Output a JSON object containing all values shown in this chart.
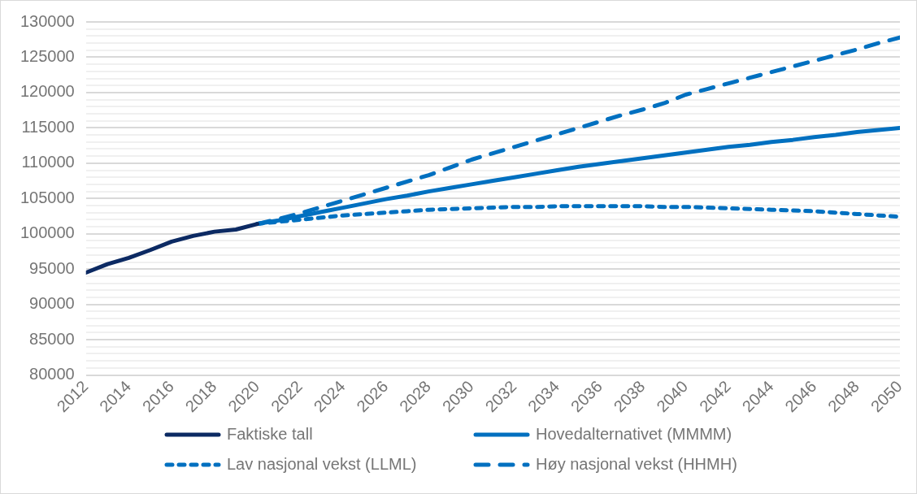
{
  "chart_data": {
    "type": "line",
    "x": [
      2012,
      2013,
      2014,
      2015,
      2016,
      2017,
      2018,
      2019,
      2020,
      2021,
      2022,
      2023,
      2024,
      2025,
      2026,
      2027,
      2028,
      2029,
      2030,
      2031,
      2032,
      2033,
      2034,
      2035,
      2036,
      2037,
      2038,
      2039,
      2040,
      2041,
      2042,
      2043,
      2044,
      2045,
      2046,
      2047,
      2048,
      2049,
      2050
    ],
    "series": [
      {
        "name": "Faktiske tall",
        "color": "#0c2a63",
        "line_style": "solid",
        "values": [
          94500,
          95700,
          96600,
          97700,
          98900,
          99700,
          100300,
          100600,
          101400,
          null,
          null,
          null,
          null,
          null,
          null,
          null,
          null,
          null,
          null,
          null,
          null,
          null,
          null,
          null,
          null,
          null,
          null,
          null,
          null,
          null,
          null,
          null,
          null,
          null,
          null,
          null,
          null,
          null,
          null
        ]
      },
      {
        "name": "Hovedalternativet (MMMM)",
        "color": "#0070c0",
        "line_style": "solid",
        "values": [
          null,
          null,
          null,
          null,
          null,
          null,
          null,
          null,
          101400,
          101900,
          102500,
          103100,
          103700,
          104300,
          104900,
          105400,
          106000,
          106500,
          107000,
          107500,
          108000,
          108500,
          109000,
          109500,
          109900,
          110300,
          110700,
          111100,
          111500,
          111900,
          112300,
          112600,
          113000,
          113300,
          113700,
          114000,
          114400,
          114700,
          115000
        ]
      },
      {
        "name": "Lav nasjonal vekst (LLML)",
        "color": "#0070c0",
        "line_style": "dotted",
        "values": [
          null,
          null,
          null,
          null,
          null,
          null,
          null,
          null,
          101400,
          101700,
          102000,
          102300,
          102600,
          102800,
          103000,
          103200,
          103400,
          103500,
          103600,
          103700,
          103800,
          103800,
          103900,
          103900,
          103900,
          103900,
          103900,
          103800,
          103800,
          103700,
          103600,
          103500,
          103400,
          103300,
          103200,
          103000,
          102800,
          102600,
          102400
        ]
      },
      {
        "name": "Høy nasjonal vekst (HHMH)",
        "color": "#0070c0",
        "line_style": "dashed",
        "values": [
          null,
          null,
          null,
          null,
          null,
          null,
          null,
          null,
          101400,
          102100,
          102900,
          103800,
          104700,
          105600,
          106500,
          107400,
          108300,
          109400,
          110500,
          111400,
          112300,
          113200,
          114100,
          115000,
          115900,
          116800,
          117600,
          118500,
          119700,
          120500,
          121300,
          122100,
          122900,
          123700,
          124500,
          125300,
          126100,
          127000,
          127800
        ]
      }
    ],
    "xlim": [
      2012,
      2050
    ],
    "xticks": [
      2012,
      2014,
      2016,
      2018,
      2020,
      2022,
      2024,
      2026,
      2028,
      2030,
      2032,
      2034,
      2036,
      2038,
      2040,
      2042,
      2044,
      2046,
      2048,
      2050
    ],
    "ylim": [
      80000,
      130000
    ],
    "yticks": [
      80000,
      {
        "value": 81000,
        "label": null
      },
      {
        "value": 82000,
        "label": null
      },
      {
        "value": 83000,
        "label": null
      },
      {
        "value": 84000,
        "label": null
      },
      85000,
      {
        "value": 86000,
        "label": null
      },
      {
        "value": 87000,
        "label": null
      },
      {
        "value": 88000,
        "label": null
      },
      {
        "value": 89000,
        "label": null
      },
      90000,
      {
        "value": 91000,
        "label": null
      },
      {
        "value": 92000,
        "label": null
      },
      {
        "value": 93000,
        "label": null
      },
      {
        "value": 94000,
        "label": null
      },
      95000,
      {
        "value": 96000,
        "label": null
      },
      {
        "value": 97000,
        "label": null
      },
      {
        "value": 98000,
        "label": null
      },
      {
        "value": 99000,
        "label": null
      },
      100000,
      {
        "value": 101000,
        "label": null
      },
      {
        "value": 102000,
        "label": null
      },
      {
        "value": 103000,
        "label": null
      },
      {
        "value": 104000,
        "label": null
      },
      105000,
      {
        "value": 106000,
        "label": null
      },
      {
        "value": 107000,
        "label": null
      },
      {
        "value": 108000,
        "label": null
      },
      {
        "value": 109000,
        "label": null
      },
      110000,
      {
        "value": 111000,
        "label": null
      },
      {
        "value": 112000,
        "label": null
      },
      {
        "value": 113000,
        "label": null
      },
      {
        "value": 114000,
        "label": null
      },
      115000,
      {
        "value": 116000,
        "label": null
      },
      {
        "value": 117000,
        "label": null
      },
      {
        "value": 118000,
        "label": null
      },
      {
        "value": 119000,
        "label": null
      },
      120000,
      {
        "value": 121000,
        "label": null
      },
      {
        "value": 122000,
        "label": null
      },
      {
        "value": 123000,
        "label": null
      },
      {
        "value": 124000,
        "label": null
      },
      125000,
      {
        "value": 126000,
        "label": null
      },
      {
        "value": 127000,
        "label": null
      },
      {
        "value": 128000,
        "label": null
      },
      {
        "value": 129000,
        "label": null
      },
      130000
    ],
    "grid": "y",
    "legend": "bottom",
    "marker": "none"
  }
}
